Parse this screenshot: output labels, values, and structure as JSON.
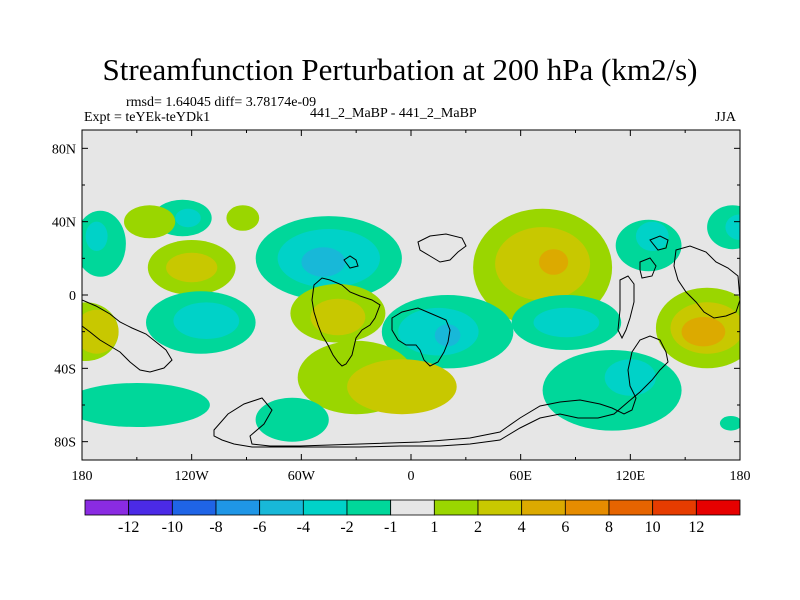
{
  "header": {
    "title": "Streamfunction Perturbation at 200 hPa (km2/s)",
    "stats": "rmsd= 1.64045 diff= 3.78174e-09",
    "expt": "Expt = teYEk-teYDk1",
    "run_label": "441_2_MaBP - 441_2_MaBP",
    "season": "JJA"
  },
  "chart_data": {
    "type": "heatmap",
    "title": "Streamfunction Perturbation at 200 hPa (km2/s)",
    "projection": "cylindrical-equidistant",
    "xlim": [
      -180,
      180
    ],
    "ylim": [
      -90,
      90
    ],
    "x_ticks": [
      {
        "value": -180,
        "label": "180"
      },
      {
        "value": -120,
        "label": "120W"
      },
      {
        "value": -60,
        "label": "60W"
      },
      {
        "value": 0,
        "label": "0"
      },
      {
        "value": 60,
        "label": "60E"
      },
      {
        "value": 120,
        "label": "120E"
      },
      {
        "value": 180,
        "label": "180"
      }
    ],
    "y_ticks": [
      {
        "value": 80,
        "label": "80N"
      },
      {
        "value": 40,
        "label": "40N"
      },
      {
        "value": 0,
        "label": "0"
      },
      {
        "value": -40,
        "label": "40S"
      },
      {
        "value": -80,
        "label": "80S"
      }
    ],
    "colorbar": {
      "colors": [
        "#8a2be2",
        "#4b2ae6",
        "#1f64e6",
        "#1f96e6",
        "#18b8d8",
        "#00d2c8",
        "#00d79a",
        "#e6e6e6",
        "#9ad600",
        "#c8c800",
        "#dcaa00",
        "#e68c00",
        "#e66400",
        "#e63c00",
        "#e60000"
      ],
      "labels": [
        "-12",
        "-10",
        "-8",
        "-6",
        "-4",
        "-2",
        "-1",
        "1",
        "2",
        "4",
        "6",
        "8",
        "10",
        "12"
      ]
    },
    "blobs": [
      {
        "lon": -170,
        "lat": 28,
        "rlon": 14,
        "rlat": 18,
        "value": -2
      },
      {
        "lon": -172,
        "lat": 32,
        "rlon": 6,
        "rlat": 8,
        "value": -4
      },
      {
        "lon": -125,
        "lat": 42,
        "rlon": 16,
        "rlat": 10,
        "value": -2
      },
      {
        "lon": -122,
        "lat": 42,
        "rlon": 7,
        "rlat": 5,
        "value": -4
      },
      {
        "lon": -143,
        "lat": 40,
        "rlon": 14,
        "rlat": 9,
        "value": 1.5
      },
      {
        "lon": -92,
        "lat": 42,
        "rlon": 9,
        "rlat": 7,
        "value": 1.5
      },
      {
        "lon": -120,
        "lat": 15,
        "rlon": 24,
        "rlat": 15,
        "value": 1.5
      },
      {
        "lon": -120,
        "lat": 15,
        "rlon": 14,
        "rlat": 8,
        "value": 3
      },
      {
        "lon": -45,
        "lat": 20,
        "rlon": 40,
        "rlat": 23,
        "value": -2
      },
      {
        "lon": -45,
        "lat": 20,
        "rlon": 28,
        "rlat": 16,
        "value": -4
      },
      {
        "lon": -48,
        "lat": 18,
        "rlon": 12,
        "rlat": 8,
        "value": -6
      },
      {
        "lon": 72,
        "lat": 15,
        "rlon": 38,
        "rlat": 32,
        "value": 1.5
      },
      {
        "lon": 72,
        "lat": 17,
        "rlon": 26,
        "rlat": 20,
        "value": 3
      },
      {
        "lon": 78,
        "lat": 18,
        "rlon": 8,
        "rlat": 7,
        "value": 5
      },
      {
        "lon": 130,
        "lat": 27,
        "rlon": 18,
        "rlat": 14,
        "value": -1.5
      },
      {
        "lon": 132,
        "lat": 32,
        "rlon": 9,
        "rlat": 8,
        "value": -4
      },
      {
        "lon": 176,
        "lat": 37,
        "rlon": 14,
        "rlat": 12,
        "value": -2
      },
      {
        "lon": 180,
        "lat": 37,
        "rlon": 8,
        "rlat": 7,
        "value": -4
      },
      {
        "lon": -178,
        "lat": -20,
        "rlon": 18,
        "rlat": 16,
        "value": 1.5
      },
      {
        "lon": -172,
        "lat": -20,
        "rlon": 12,
        "rlat": 12,
        "value": 3
      },
      {
        "lon": -115,
        "lat": -15,
        "rlon": 30,
        "rlat": 17,
        "value": -1.5
      },
      {
        "lon": -112,
        "lat": -14,
        "rlon": 18,
        "rlat": 10,
        "value": -3
      },
      {
        "lon": -40,
        "lat": -10,
        "rlon": 26,
        "rlat": 16,
        "value": 1.5
      },
      {
        "lon": -40,
        "lat": -12,
        "rlon": 15,
        "rlat": 10,
        "value": 3
      },
      {
        "lon": 20,
        "lat": -20,
        "rlon": 36,
        "rlat": 20,
        "value": -1.5
      },
      {
        "lon": 15,
        "lat": -20,
        "rlon": 22,
        "rlat": 13,
        "value": -3
      },
      {
        "lon": 20,
        "lat": -22,
        "rlon": 7,
        "rlat": 6,
        "value": -6
      },
      {
        "lon": 85,
        "lat": -15,
        "rlon": 30,
        "rlat": 15,
        "value": -1.5
      },
      {
        "lon": 85,
        "lat": -15,
        "rlon": 18,
        "rlat": 8,
        "value": -3
      },
      {
        "lon": 162,
        "lat": -18,
        "rlon": 28,
        "rlat": 22,
        "value": 1.5
      },
      {
        "lon": 162,
        "lat": -18,
        "rlon": 20,
        "rlat": 14,
        "value": 3
      },
      {
        "lon": 160,
        "lat": -20,
        "rlon": 12,
        "rlat": 8,
        "value": 5
      },
      {
        "lon": -30,
        "lat": -45,
        "rlon": 32,
        "rlat": 20,
        "value": 1.5
      },
      {
        "lon": -5,
        "lat": -50,
        "rlon": 30,
        "rlat": 15,
        "value": 3
      },
      {
        "lon": -65,
        "lat": -68,
        "rlon": 20,
        "rlat": 12,
        "value": -2
      },
      {
        "lon": -150,
        "lat": -60,
        "rlon": 40,
        "rlat": 12,
        "value": -2
      },
      {
        "lon": 110,
        "lat": -52,
        "rlon": 38,
        "rlat": 22,
        "value": -1.5
      },
      {
        "lon": 120,
        "lat": -45,
        "rlon": 14,
        "rlat": 10,
        "value": -3
      },
      {
        "lon": 175,
        "lat": -70,
        "rlon": 6,
        "rlat": 4,
        "value": -2
      }
    ]
  }
}
